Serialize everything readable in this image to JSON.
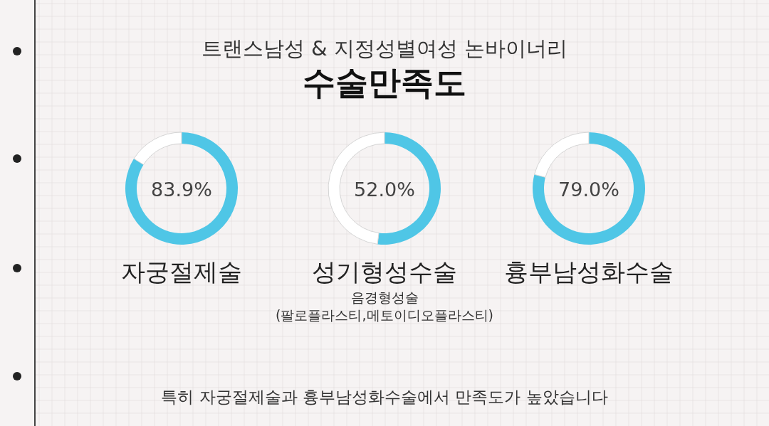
{
  "chart_data": [
    {
      "type": "other",
      "subtitle": "트랜스남성 & 지정성별여성 논바이너리",
      "title": "수술만족도",
      "annotations": [
        "특히 자궁절제술과 흉부남성화수술에서 만족도가 높았습니다"
      ]
    },
    {
      "type": "donut",
      "title": "자궁절제술",
      "categories": [
        null,
        null
      ],
      "values": [
        83.9,
        16.1
      ],
      "colors": [
        "#4fc6e6",
        "#ffffff"
      ],
      "value_labels": [
        "83.9%",
        null
      ]
    },
    {
      "type": "donut",
      "title": "성기형성수술",
      "categories": [
        null,
        null
      ],
      "values": [
        52.0,
        48.0
      ],
      "colors": [
        "#4fc6e6",
        "#ffffff"
      ],
      "value_labels": [
        "52.0%",
        null
      ],
      "annotations": [
        "음경형성술",
        "(팔로플라스티,메토이디오플라스티)"
      ]
    },
    {
      "type": "donut",
      "title": "흉부남성화수술",
      "categories": [
        null,
        null
      ],
      "values": [
        79.0,
        21.0
      ],
      "colors": [
        "#4fc6e6",
        "#ffffff"
      ],
      "value_labels": [
        "79.0%",
        null
      ]
    }
  ]
}
